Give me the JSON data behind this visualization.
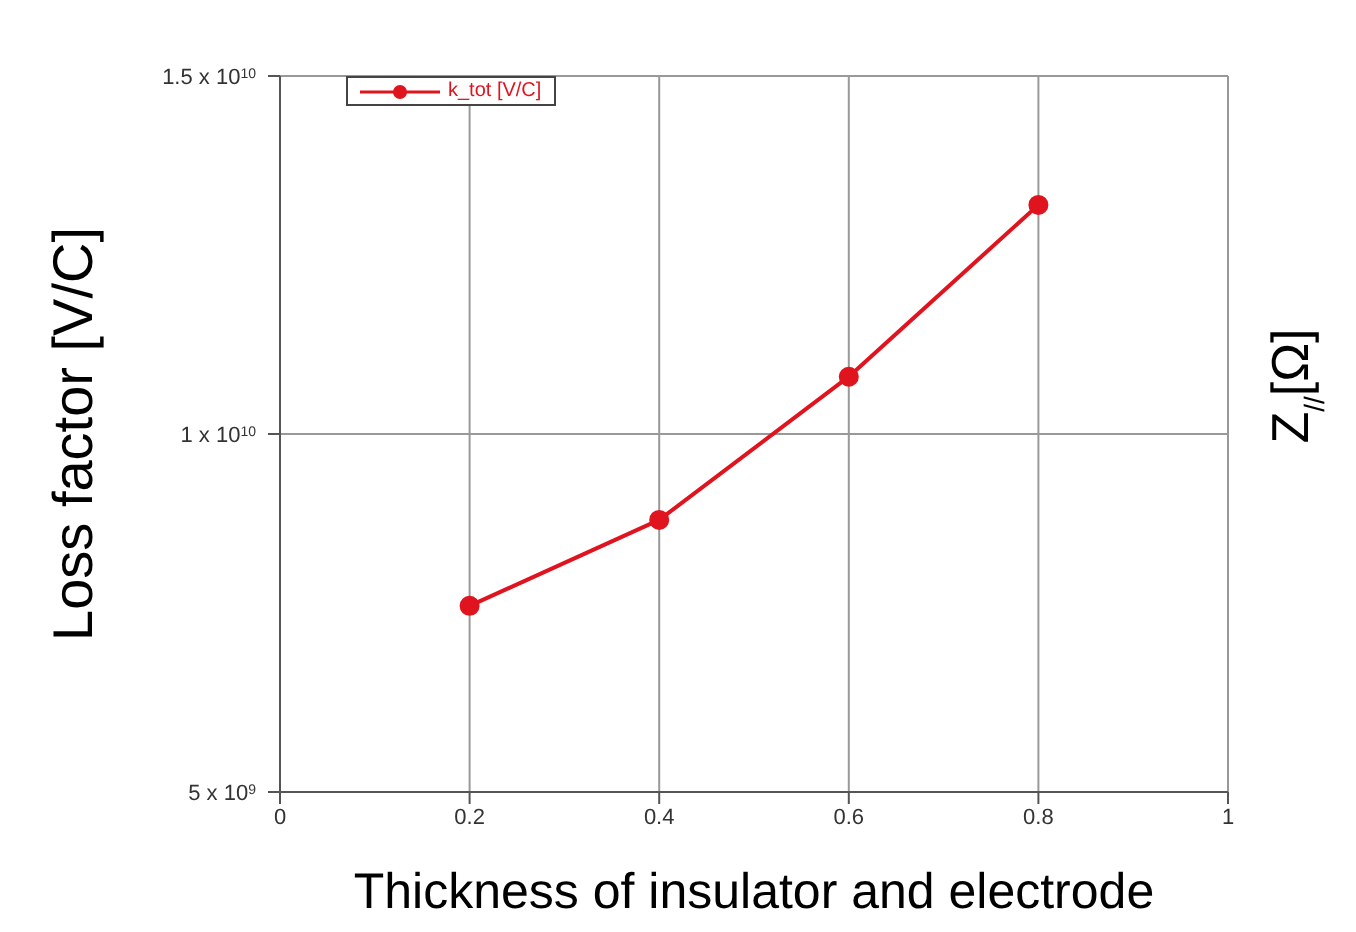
{
  "chart_data": {
    "type": "line",
    "xlabel": "Thickness of insulator and electrode",
    "ylabel": "Loss factor [V/C]",
    "y2label": "Z$_{//}$[Ω]",
    "x": [
      0.2,
      0.4,
      0.6,
      0.8
    ],
    "series": [
      {
        "name": "k_tot [V/C]",
        "color": "#e0141e",
        "values": [
          7600000000.0,
          8800000000.0,
          10800000000.0,
          13200000000.0
        ]
      }
    ],
    "xlim": [
      0,
      1
    ],
    "xticks": [
      0,
      0.2,
      0.4,
      0.6,
      0.8,
      1
    ],
    "ylim": [
      5000000000.0,
      15000000000.0
    ],
    "yticks": [
      {
        "value": 5000000000.0,
        "label": "5 x 10$^{9}$"
      },
      {
        "value": 10000000000.0,
        "label": "1 x 10$^{10}$"
      },
      {
        "value": 15000000000.0,
        "label": "1.5 x 10$^{10}$"
      }
    ],
    "grid": true,
    "legend": "top left",
    "marker": "circle",
    "line_style": "solid"
  }
}
